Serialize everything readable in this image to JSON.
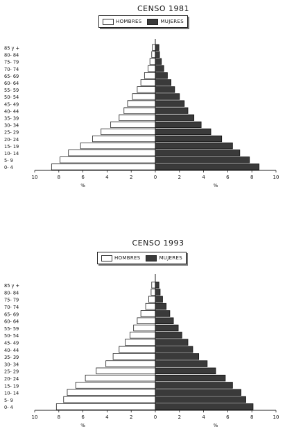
{
  "chart_data": [
    {
      "type": "bar",
      "orientation": "horizontal",
      "layout": "population-pyramid",
      "title": "CENSO 1981",
      "legend_placement": "top-center",
      "categories": [
        "0- 4",
        "5- 9",
        "10- 14",
        "15- 19",
        "20- 24",
        "25- 29",
        "30- 34",
        "35- 39",
        "40- 44",
        "45- 49",
        "50- 54",
        "55- 59",
        "60- 64",
        "65- 69",
        "70- 74",
        "75- 79",
        "80- 84",
        "85 y +"
      ],
      "x_tick_labels": [
        "10",
        "8",
        "6",
        "4",
        "2",
        "0",
        "2",
        "4",
        "6",
        "8",
        "10"
      ],
      "x_unit_labels": [
        "%",
        "%"
      ],
      "xlim": [
        -10,
        10
      ],
      "series": [
        {
          "name": "HOMBRES",
          "side": "left",
          "color": "#ffffff",
          "values": [
            8.6,
            7.9,
            7.2,
            6.2,
            5.2,
            4.5,
            3.7,
            3.0,
            2.6,
            2.3,
            1.9,
            1.5,
            1.2,
            0.9,
            0.6,
            0.45,
            0.3,
            0.25
          ]
        },
        {
          "name": "MUJERES",
          "side": "right",
          "color": "#3a3a3a",
          "values": [
            8.6,
            7.8,
            7.0,
            6.4,
            5.5,
            4.6,
            3.8,
            3.2,
            2.7,
            2.4,
            2.0,
            1.6,
            1.3,
            1.0,
            0.7,
            0.5,
            0.35,
            0.3
          ]
        }
      ]
    },
    {
      "type": "bar",
      "orientation": "horizontal",
      "layout": "population-pyramid",
      "title": "CENSO 1993",
      "legend_placement": "top-center",
      "categories": [
        "0- 4",
        "5- 9",
        "10- 14",
        "15- 19",
        "20- 24",
        "25- 29",
        "30- 34",
        "35- 39",
        "40- 44",
        "45- 49",
        "50- 54",
        "55- 59",
        "60- 64",
        "65- 69",
        "70- 74",
        "75- 79",
        "80- 84",
        "85 y +"
      ],
      "x_tick_labels": [
        "10",
        "8",
        "6",
        "4",
        "2",
        "0",
        "2",
        "4",
        "6",
        "8",
        "10"
      ],
      "x_unit_labels": [
        "%",
        "%"
      ],
      "xlim": [
        -10,
        10
      ],
      "series": [
        {
          "name": "HOMBRES",
          "side": "left",
          "color": "#ffffff",
          "values": [
            8.2,
            7.6,
            7.3,
            6.6,
            5.8,
            4.9,
            4.1,
            3.5,
            3.0,
            2.5,
            2.1,
            1.8,
            1.5,
            1.2,
            0.8,
            0.55,
            0.35,
            0.3
          ]
        },
        {
          "name": "MUJERES",
          "side": "right",
          "color": "#3a3a3a",
          "values": [
            8.1,
            7.5,
            7.1,
            6.4,
            5.8,
            5.0,
            4.3,
            3.6,
            3.1,
            2.7,
            2.2,
            1.9,
            1.5,
            1.2,
            0.9,
            0.6,
            0.4,
            0.3
          ]
        }
      ]
    }
  ]
}
